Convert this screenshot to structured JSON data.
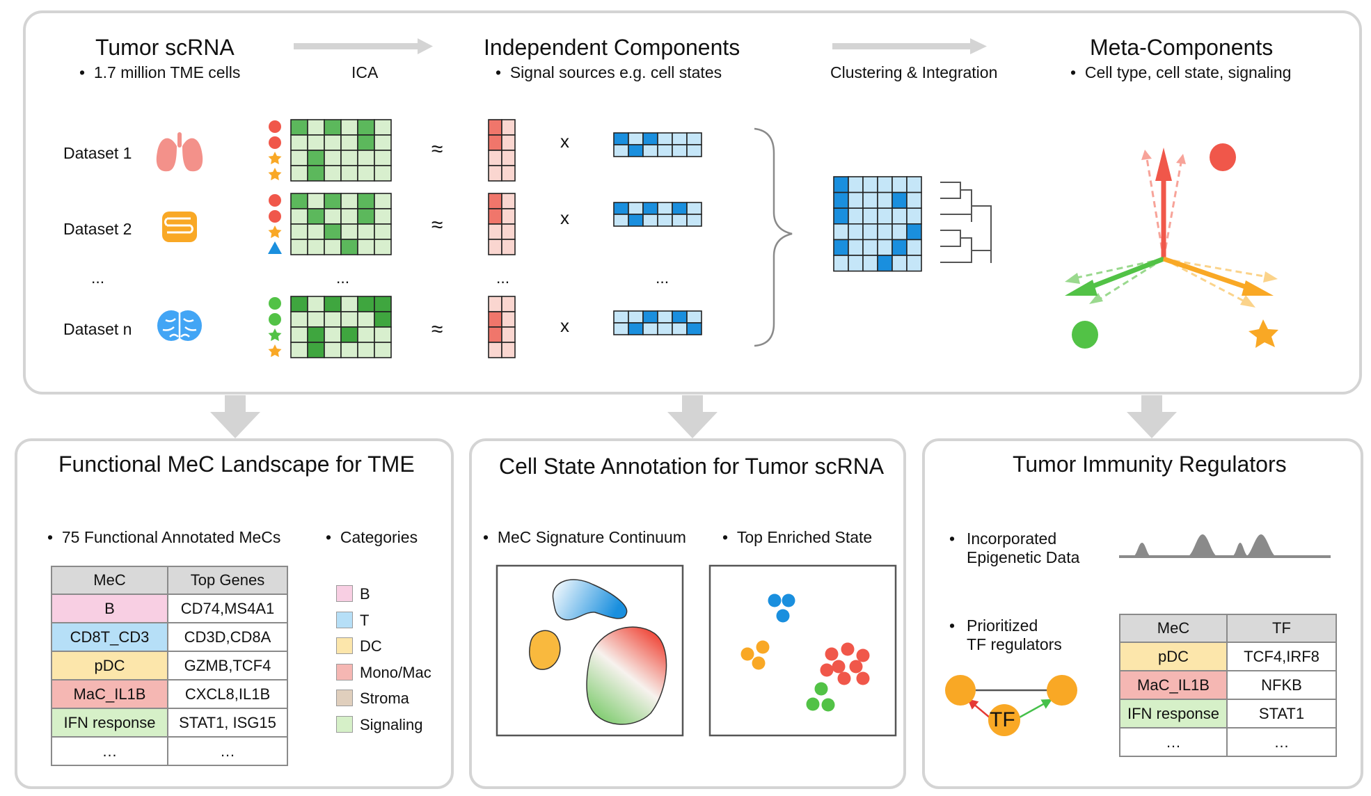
{
  "top": {
    "col1_title": "Tumor scRNA",
    "col1_bullet": "1.7 million TME cells",
    "arrow1_label": "ICA",
    "col2_title": "Independent Components",
    "col2_bullet": "Signal sources e.g. cell states",
    "arrow2_label": "Clustering & Integration",
    "col3_title": "Meta-Components",
    "col3_bullet": "Cell type, cell state, signaling",
    "datasets": [
      "Dataset 1",
      "Dataset 2",
      "...",
      "Dataset n"
    ],
    "approx": "≈",
    "times": "x",
    "ellipsis": "..."
  },
  "panel1": {
    "title": "Functional MeC Landscape for TME",
    "bullet1": "75 Functional Annotated MeCs",
    "bullet2": "Categories",
    "table_headers": [
      "MeC",
      "Top Genes"
    ],
    "rows": [
      {
        "mec": "B",
        "genes": "CD74,MS4A1",
        "color": "#f8cfe3"
      },
      {
        "mec": "CD8T_CD3",
        "genes": "CD3D,CD8A",
        "color": "#b6dff7"
      },
      {
        "mec": "pDC",
        "genes": "GZMB,TCF4",
        "color": "#fce6ab"
      },
      {
        "mec": "MaC_IL1B",
        "genes": "CXCL8,IL1B",
        "color": "#f5b7b3"
      },
      {
        "mec": "IFN response",
        "genes": "STAT1, ISG15",
        "color": "#d6f0c8"
      },
      {
        "mec": "…",
        "genes": "…",
        "color": "#ffffff"
      }
    ],
    "categories": [
      {
        "label": "B",
        "color": "#f8cfe3"
      },
      {
        "label": "T",
        "color": "#b6dff7"
      },
      {
        "label": "DC",
        "color": "#fce6ab"
      },
      {
        "label": "Mono/Mac",
        "color": "#f5b7b3"
      },
      {
        "label": "Stroma",
        "color": "#e0cfbd"
      },
      {
        "label": "Signaling",
        "color": "#d6f0c8"
      }
    ]
  },
  "panel2": {
    "title": "Cell State Annotation for Tumor scRNA",
    "bullet1": "MeC Signature Continuum",
    "bullet2": "Top Enriched State"
  },
  "panel3": {
    "title": "Tumor Immunity Regulators",
    "bullet1_line1": "Incorporated",
    "bullet1_line2": "Epigenetic Data",
    "bullet2_line1": "Prioritized",
    "bullet2_line2": "TF regulators",
    "tf_label": "TF",
    "table_headers": [
      "MeC",
      "TF"
    ],
    "rows": [
      {
        "mec": "pDC",
        "tf": "TCF4,IRF8",
        "color": "#fce6ab"
      },
      {
        "mec": "MaC_IL1B",
        "tf": "NFKB",
        "color": "#f5b7b3"
      },
      {
        "mec": "IFN response",
        "tf": "STAT1",
        "color": "#d6f0c8"
      },
      {
        "mec": "…",
        "tf": "…",
        "color": "#ffffff"
      }
    ]
  },
  "colors": {
    "green_dark": "#3da93a",
    "green_light": "#c6e8bb",
    "blue_dark": "#1a8fde",
    "blue_light": "#c5e6f8",
    "red_dark": "#f0574a",
    "red_light": "#fad2cc",
    "orange": "#f9a825",
    "arrow_gray": "#d4d4d4"
  }
}
